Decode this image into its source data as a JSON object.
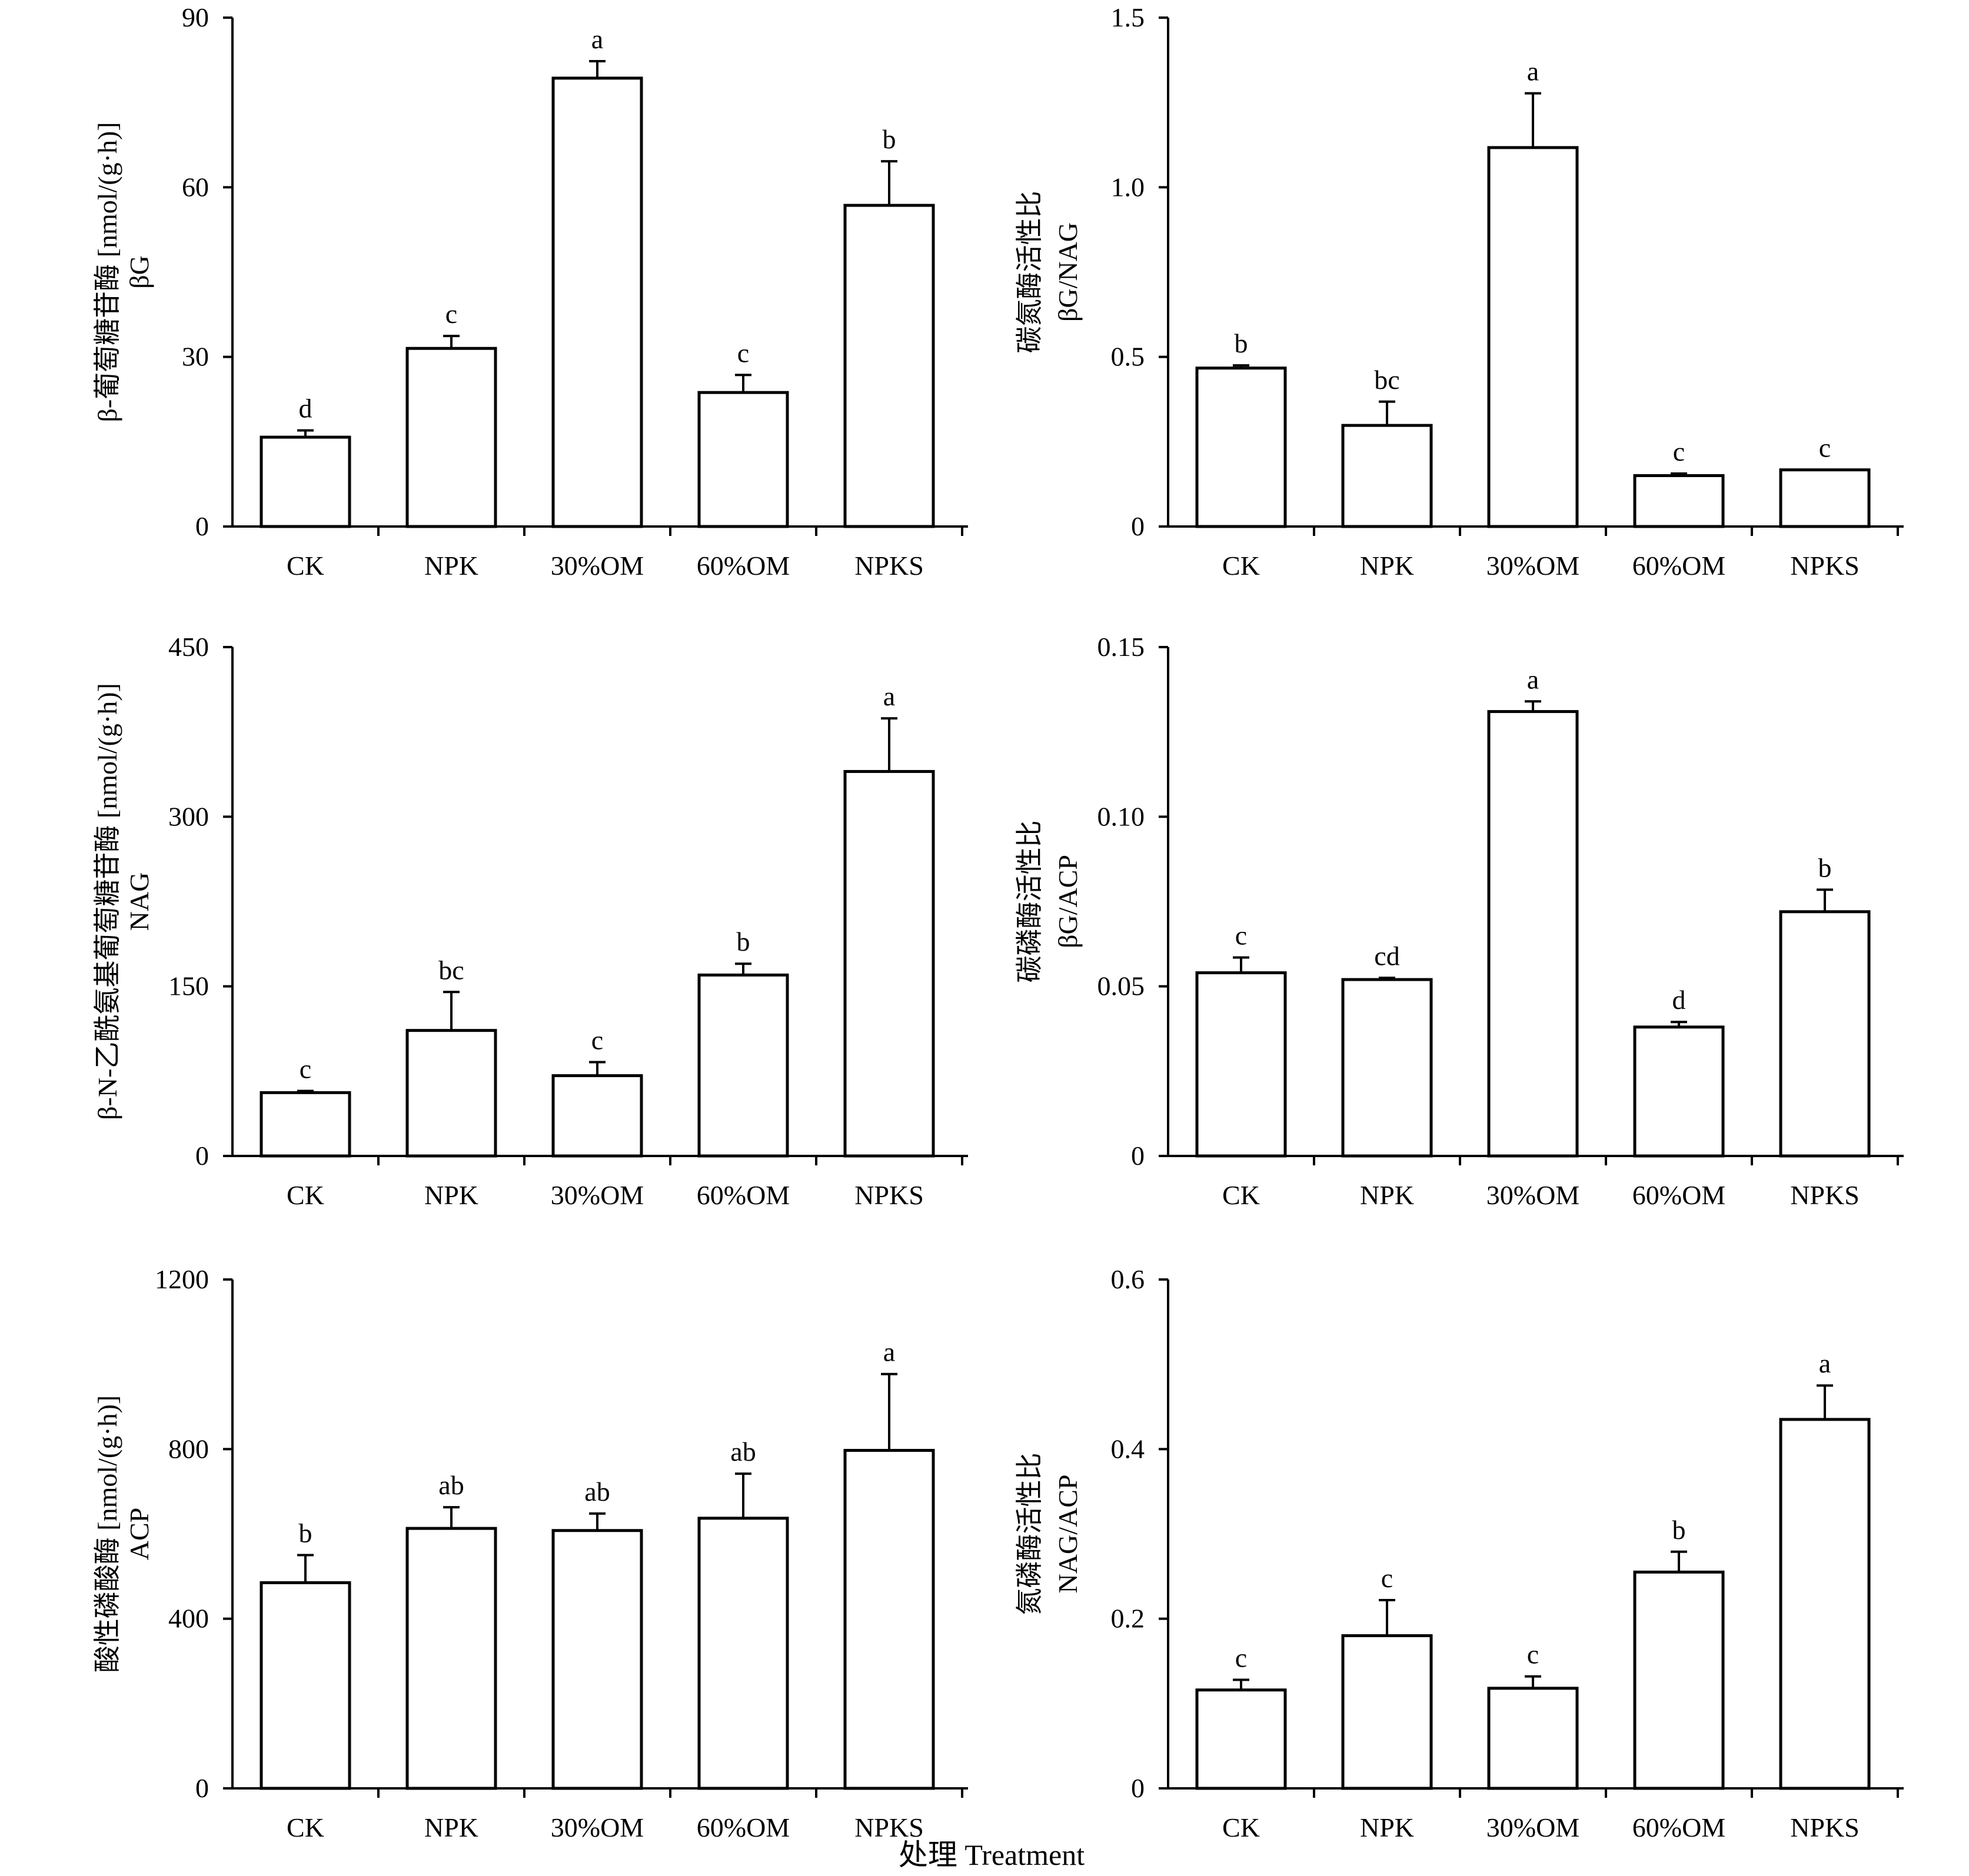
{
  "figure_xlabel": "处理 Treatment",
  "chart_data": [
    {
      "type": "bar",
      "categories": [
        "CK",
        "NPK",
        "30%OM",
        "60%OM",
        "NPKS"
      ],
      "values": [
        15.8,
        31.5,
        79.3,
        23.7,
        56.8
      ],
      "errors": [
        1.2,
        2.2,
        3.0,
        3.1,
        7.8
      ],
      "significance": [
        "d",
        "c",
        "a",
        "c",
        "b"
      ],
      "ylabel_line1": "β-葡萄糖苷酶 [nmol/(g·h)]",
      "ylabel_line2": "βG",
      "ylim": [
        0,
        90
      ],
      "yticks": [
        0,
        30,
        60,
        90
      ],
      "ytick_labels": [
        "0",
        "30",
        "60",
        "90"
      ],
      "grid": false
    },
    {
      "type": "bar",
      "categories": [
        "CK",
        "NPK",
        "30%OM",
        "60%OM",
        "NPKS"
      ],
      "values": [
        0.467,
        0.298,
        1.117,
        0.15,
        0.167
      ],
      "errors": [
        0.008,
        0.07,
        0.16,
        0.006,
        0.0
      ],
      "significance": [
        "b",
        "bc",
        "a",
        "c",
        "c"
      ],
      "ylabel_line1": "碳氮酶活性比",
      "ylabel_line2": "βG/NAG",
      "ylim": [
        0,
        1.5
      ],
      "yticks": [
        0,
        0.5,
        1.0,
        1.5
      ],
      "ytick_labels": [
        "0",
        "0.5",
        "1.0",
        "1.5"
      ],
      "grid": false
    },
    {
      "type": "bar",
      "categories": [
        "CK",
        "NPK",
        "30%OM",
        "60%OM",
        "NPKS"
      ],
      "values": [
        56,
        111,
        71,
        160,
        340
      ],
      "errors": [
        1.5,
        34,
        12,
        10,
        47
      ],
      "significance": [
        "c",
        "bc",
        "c",
        "b",
        "a"
      ],
      "ylabel_line1": "β-N-乙酰氨基葡萄糖苷酶 [nmol/(g·h)]",
      "ylabel_line2": "NAG",
      "ylim": [
        0,
        450
      ],
      "yticks": [
        0,
        150,
        300,
        450
      ],
      "ytick_labels": [
        "0",
        "150",
        "300",
        "450"
      ],
      "grid": false
    },
    {
      "type": "bar",
      "categories": [
        "CK",
        "NPK",
        "30%OM",
        "60%OM",
        "NPKS"
      ],
      "values": [
        0.054,
        0.052,
        0.131,
        0.038,
        0.072
      ],
      "errors": [
        0.0045,
        0.0005,
        0.003,
        0.0015,
        0.0065
      ],
      "significance": [
        "c",
        "cd",
        "a",
        "d",
        "b"
      ],
      "ylabel_line1": "碳磷酶活性比",
      "ylabel_line2": "βG/ACP",
      "ylim": [
        0,
        0.15
      ],
      "yticks": [
        0,
        0.05,
        0.1,
        0.15
      ],
      "ytick_labels": [
        "0",
        "0.05",
        "0.10",
        "0.15"
      ],
      "grid": false
    },
    {
      "type": "bar",
      "categories": [
        "CK",
        "NPK",
        "30%OM",
        "60%OM",
        "NPKS"
      ],
      "values": [
        485,
        613,
        608,
        637,
        797
      ],
      "errors": [
        65,
        50,
        40,
        105,
        180
      ],
      "significance": [
        "b",
        "ab",
        "ab",
        "ab",
        "a"
      ],
      "ylabel_line1": "酸性磷酸酶 [nmol/(g·h)]",
      "ylabel_line2": "ACP",
      "ylim": [
        0,
        1200
      ],
      "yticks": [
        0,
        400,
        800,
        1200
      ],
      "ytick_labels": [
        "0",
        "400",
        "800",
        "1200"
      ],
      "grid": false
    },
    {
      "type": "bar",
      "categories": [
        "CK",
        "NPK",
        "30%OM",
        "60%OM",
        "NPKS"
      ],
      "values": [
        0.116,
        0.18,
        0.118,
        0.255,
        0.435
      ],
      "errors": [
        0.012,
        0.042,
        0.014,
        0.024,
        0.04
      ],
      "significance": [
        "c",
        "c",
        "c",
        "b",
        "a"
      ],
      "ylabel_line1": "氮磷酶活性比",
      "ylabel_line2": "NAG/ACP",
      "ylim": [
        0,
        0.6
      ],
      "yticks": [
        0,
        0.2,
        0.4,
        0.6
      ],
      "ytick_labels": [
        "0",
        "0.2",
        "0.4",
        "0.6"
      ],
      "grid": false
    }
  ]
}
